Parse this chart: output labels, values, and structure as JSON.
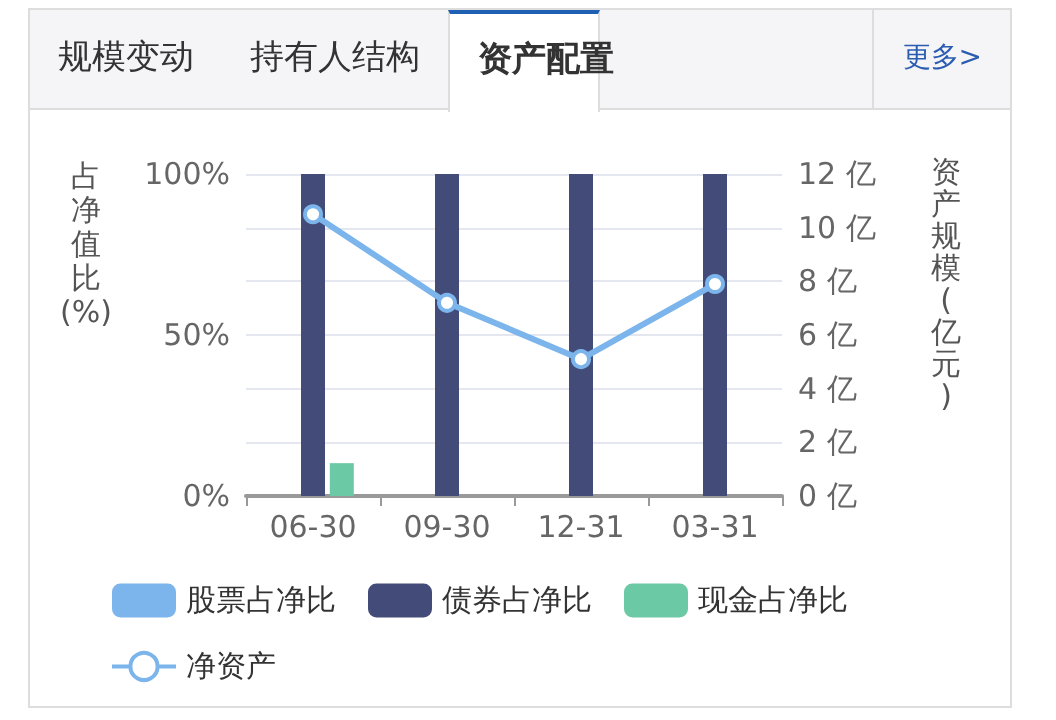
{
  "chart_data": {
    "type": "bar",
    "annotations": [
      "规模变动",
      "持有人结构",
      "资产配置",
      "更多>"
    ],
    "categories": [
      "06-30",
      "09-30",
      "12-31",
      "03-31"
    ],
    "ylabel": "占净值比(%)",
    "y2label": "资产规模(亿元)",
    "ylim": [
      0,
      100
    ],
    "yticks": [
      {
        "value": 0,
        "label": "0%"
      },
      {
        "value": 50,
        "label": "50%"
      },
      {
        "value": 100,
        "label": "100%"
      }
    ],
    "y2lim": [
      0,
      12
    ],
    "y2ticks": [
      {
        "value": 0,
        "label": "0 亿"
      },
      {
        "value": 2,
        "label": "2 亿"
      },
      {
        "value": 4,
        "label": "4 亿"
      },
      {
        "value": 6,
        "label": "6 亿"
      },
      {
        "value": 8,
        "label": "8 亿"
      },
      {
        "value": 10,
        "label": "10 亿"
      },
      {
        "value": 12,
        "label": "12 亿"
      }
    ],
    "grid": "y",
    "legend": "bottom",
    "marker": "circle",
    "line_style": "solid",
    "series": [
      {
        "name": "股票占净比",
        "color": "#7cb5ec",
        "values": [
          0,
          0,
          0,
          0
        ]
      },
      {
        "name": "债券占净比",
        "color": "#434c78",
        "values": [
          100,
          100,
          100,
          100
        ]
      },
      {
        "name": "现金占净比",
        "color": "#6cc9a5",
        "values": [
          10.2,
          null,
          0,
          null
        ]
      },
      {
        "name": "净资产",
        "type": "line",
        "axis": "y2",
        "color": "#7cb5ec",
        "values": [
          10.5,
          7.2,
          5.1,
          7.9
        ]
      }
    ]
  }
}
